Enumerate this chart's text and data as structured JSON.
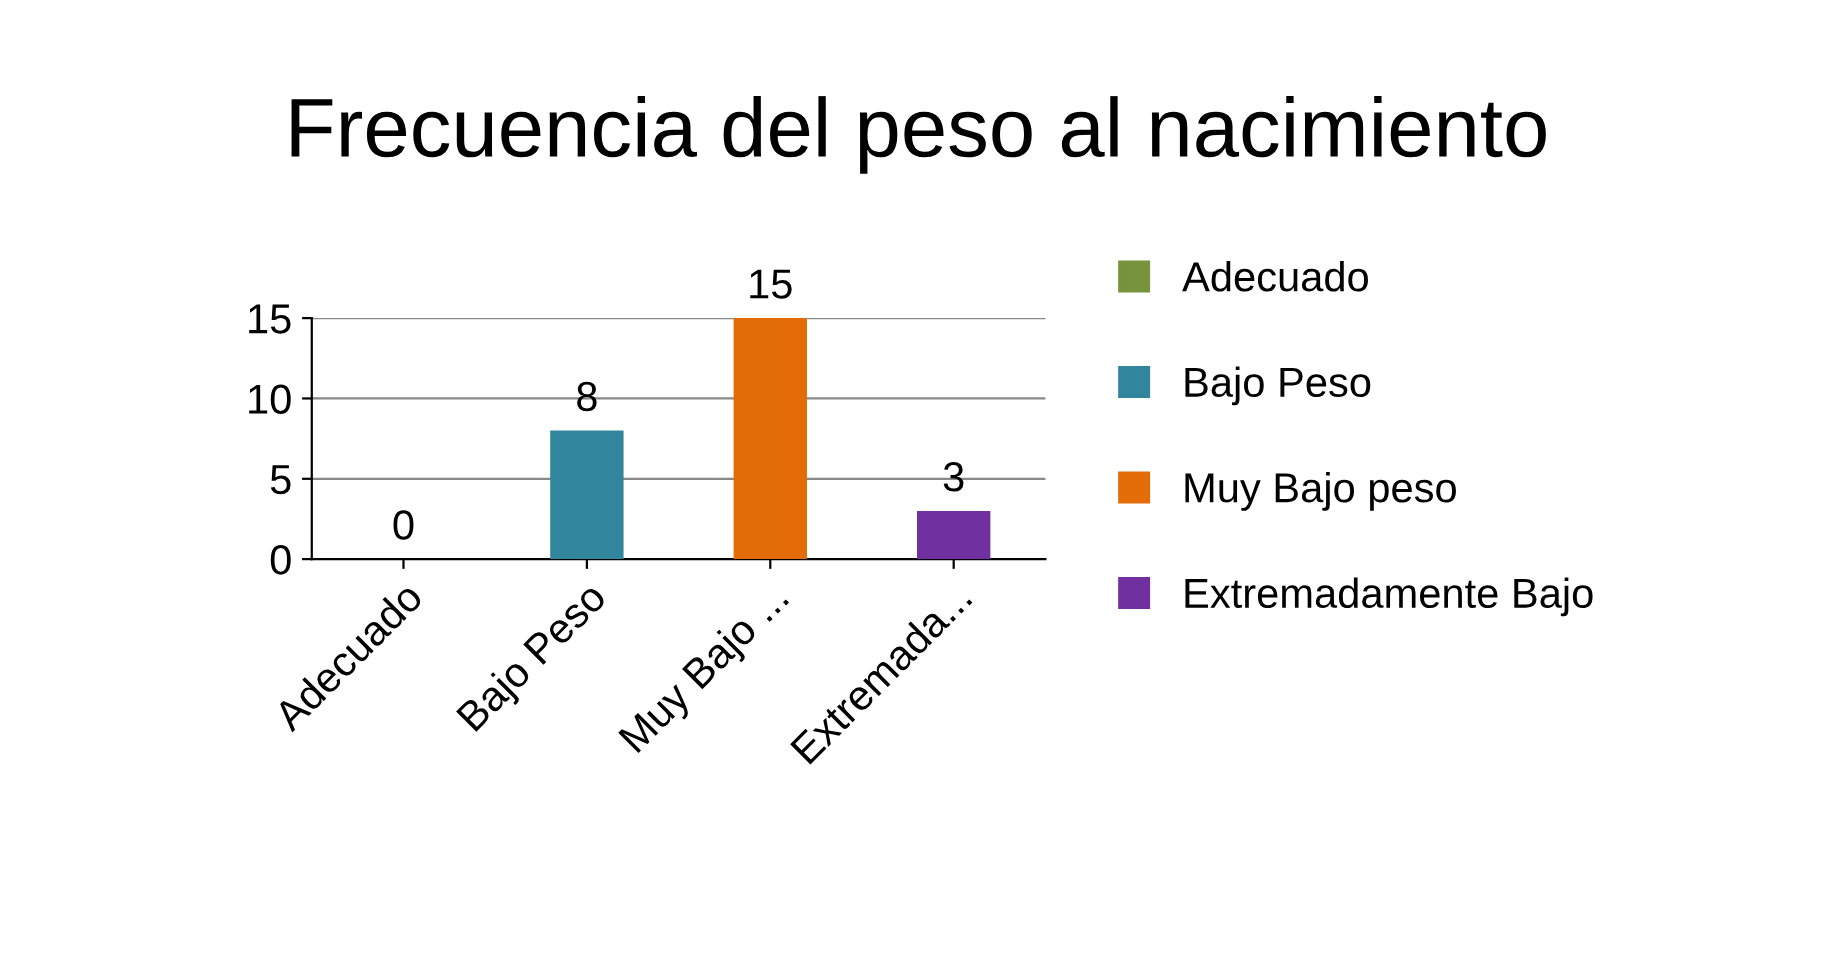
{
  "chart_data": {
    "type": "bar",
    "title": "Frecuencia del peso al nacimiento",
    "categories": [
      "Adecuado",
      "Bajo Peso",
      "Muy Bajo ...",
      "Extremada..."
    ],
    "series": [
      {
        "name": "Adecuado",
        "color": "#77933c",
        "values": [
          0,
          null,
          null,
          null
        ]
      },
      {
        "name": "Bajo Peso",
        "color": "#31859c",
        "values": [
          null,
          8,
          null,
          null
        ]
      },
      {
        "name": "Muy Bajo peso",
        "color": "#e36c09",
        "values": [
          null,
          null,
          15,
          null
        ]
      },
      {
        "name": "Extremadamente Bajo",
        "color": "#7030a0",
        "values": [
          null,
          null,
          null,
          3
        ]
      }
    ],
    "ylim": [
      0,
      15
    ],
    "yticks": [
      0,
      5,
      10,
      15
    ],
    "grid": "y",
    "legend": "right",
    "data_labels": true
  }
}
